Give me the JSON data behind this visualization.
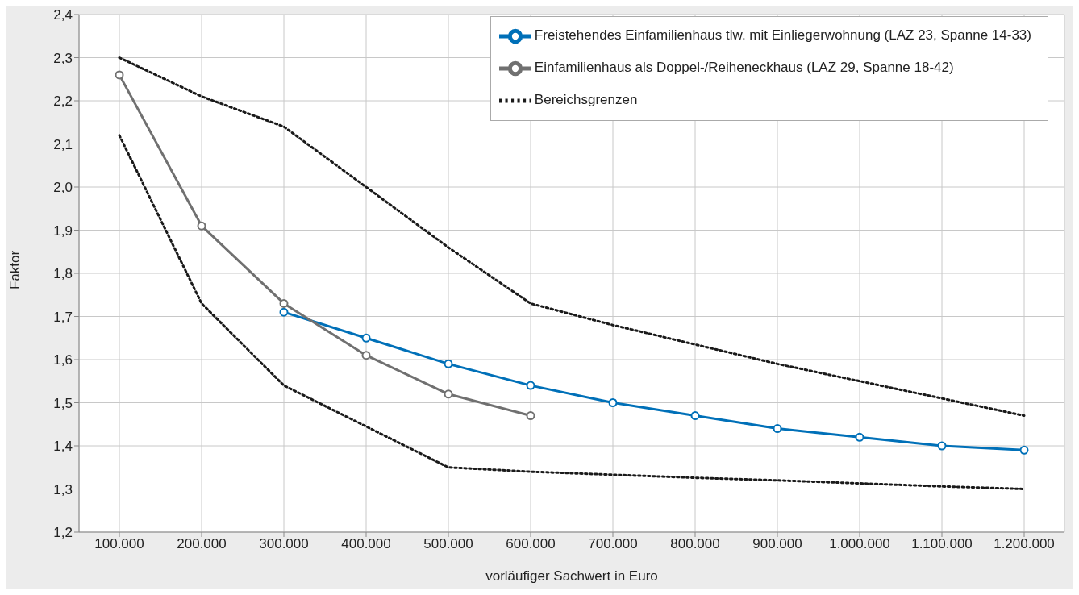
{
  "chart_data": {
    "type": "line",
    "xlabel": "vorläufiger Sachwert in Euro",
    "ylabel": "Faktor",
    "categories": [
      "100.000",
      "200.000",
      "300.000",
      "400.000",
      "500.000",
      "600.000",
      "700.000",
      "800.000",
      "900.000",
      "1.000.000",
      "1.100.000",
      "1.200.000"
    ],
    "ylim": [
      1.2,
      2.4
    ],
    "yticks": [
      {
        "value": 1.2,
        "label": "1,2"
      },
      {
        "value": 1.3,
        "label": "1,3"
      },
      {
        "value": 1.4,
        "label": "1,4"
      },
      {
        "value": 1.5,
        "label": "1,5"
      },
      {
        "value": 1.6,
        "label": "1,6"
      },
      {
        "value": 1.7,
        "label": "1,7"
      },
      {
        "value": 1.8,
        "label": "1,8"
      },
      {
        "value": 1.9,
        "label": "1,9"
      },
      {
        "value": 2.0,
        "label": "2,0"
      },
      {
        "value": 2.1,
        "label": "2,1"
      },
      {
        "value": 2.2,
        "label": "2,2"
      },
      {
        "value": 2.3,
        "label": "2,3"
      },
      {
        "value": 2.4,
        "label": "2,4"
      }
    ],
    "grid": true,
    "legend": "top right",
    "series": [
      {
        "name": "Freistehendes Einfamilienhaus tlw. mit Einliegerwohnung (LAZ 23, Spanne 14-33)",
        "color": "#0070b8",
        "marker": "circle",
        "line_style": "solid",
        "values": [
          null,
          null,
          1.71,
          1.65,
          1.59,
          1.54,
          1.5,
          1.47,
          1.44,
          1.42,
          1.4,
          1.39
        ]
      },
      {
        "name": "Einfamilienhaus als Doppel-/Reiheneckhaus (LAZ 29, Spanne 18-42)",
        "color": "#707070",
        "marker": "circle",
        "line_style": "solid",
        "values": [
          2.26,
          1.91,
          1.73,
          1.61,
          1.52,
          1.47,
          null,
          null,
          null,
          null,
          null,
          null
        ]
      },
      {
        "name": "Bereichsgrenzen",
        "color": "#1a1a1a",
        "marker": "none",
        "line_style": "dotted",
        "values": [
          2.3,
          2.21,
          2.14,
          2.0,
          1.86,
          1.73,
          1.68,
          1.635,
          1.59,
          1.55,
          1.51,
          1.47
        ]
      },
      {
        "color": "#1a1a1a",
        "marker": "none",
        "line_style": "dotted",
        "values": [
          2.12,
          1.73,
          1.54,
          1.445,
          1.35,
          1.34,
          1.333,
          1.326,
          1.32,
          1.313,
          1.306,
          1.3
        ]
      }
    ]
  }
}
